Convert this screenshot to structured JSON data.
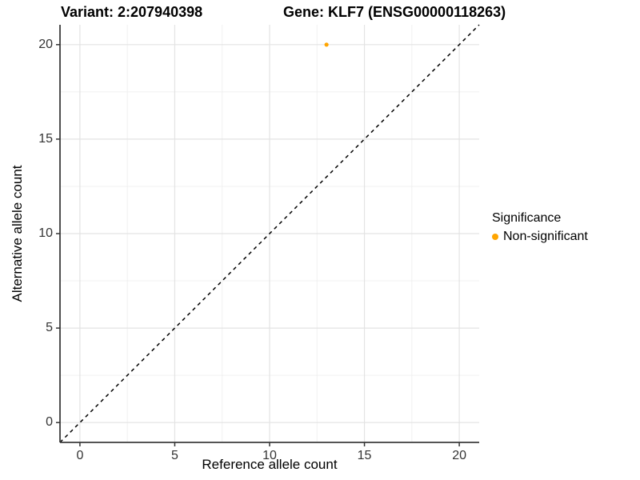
{
  "header": {
    "variant_title": "Variant: 2:207940398",
    "gene_title": "Gene: KLF7 (ENSG00000118263)"
  },
  "legend": {
    "title": "Significance",
    "items": [
      {
        "label": "Non-significant",
        "color": "#FFA500"
      }
    ]
  },
  "chart_data": {
    "type": "scatter",
    "title": "Variant: 2:207940398 — Gene: KLF7 (ENSG00000118263)",
    "xlabel": "Reference allele count",
    "ylabel": "Alternative allele count",
    "xlim": [
      -1.05,
      21.05
    ],
    "ylim": [
      -1.05,
      21.05
    ],
    "xticks": [
      0,
      5,
      10,
      15,
      20
    ],
    "yticks": [
      0,
      5,
      10,
      15,
      20
    ],
    "minor_gridlines_x": [
      2.5,
      7.5,
      12.5,
      17.5
    ],
    "minor_gridlines_y": [
      2.5,
      7.5,
      12.5,
      17.5
    ],
    "grid": true,
    "legend_position": "right",
    "series": [
      {
        "name": "Non-significant",
        "color": "#FFA500",
        "points": [
          {
            "x": 13,
            "y": 20
          }
        ]
      }
    ],
    "reference_line": {
      "kind": "abline",
      "slope": 1,
      "intercept": 0,
      "linetype": "dashed",
      "color": "#000000"
    },
    "style_colors": {
      "major_grid": "#e3e3e3",
      "minor_grid": "#f0f0f0",
      "axis_line": "#3c3c3c",
      "tick_mark": "#333333",
      "tick_text": "#333333",
      "background": "#ffffff"
    }
  }
}
